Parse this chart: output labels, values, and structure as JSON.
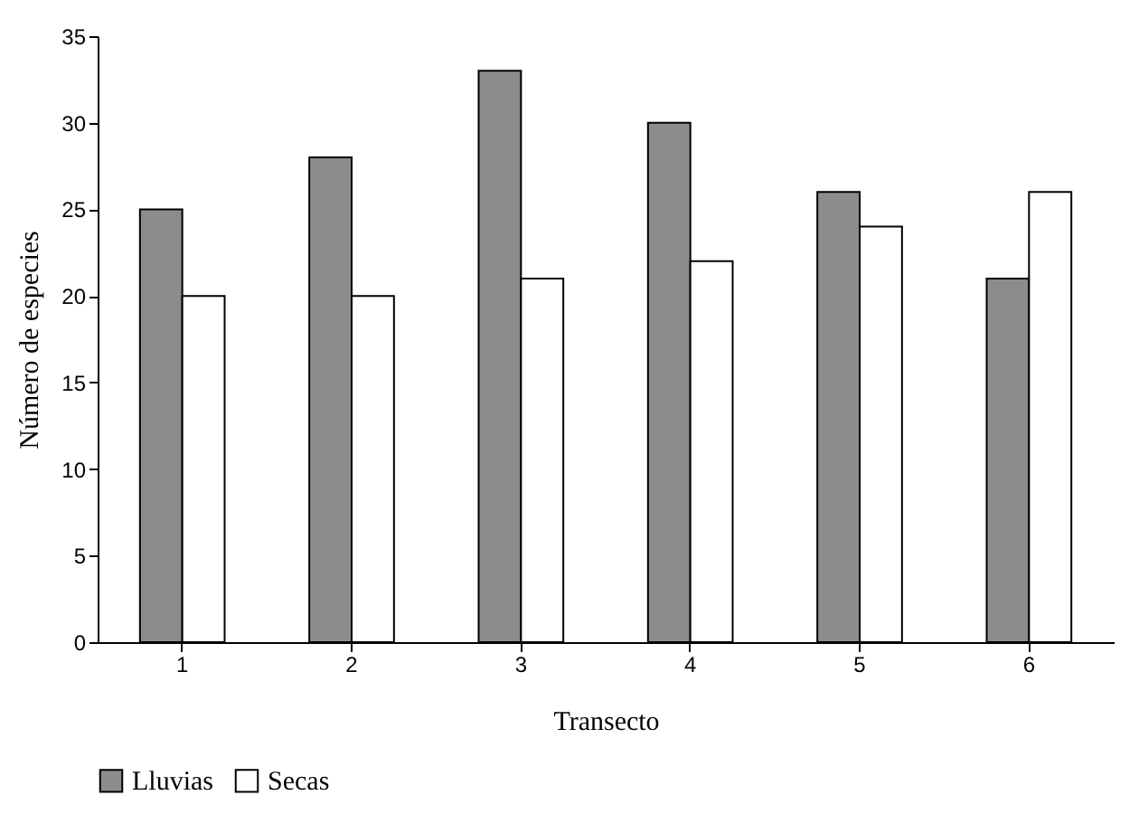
{
  "chart_data": {
    "type": "bar",
    "xlabel": "Transecto",
    "ylabel": "Número de especies",
    "categories": [
      "1",
      "2",
      "3",
      "4",
      "5",
      "6"
    ],
    "series": [
      {
        "name": "Lluvias",
        "color": "#8c8c8c",
        "values": [
          25,
          28,
          33,
          30,
          26,
          21
        ]
      },
      {
        "name": "Secas",
        "color": "#ffffff",
        "values": [
          20,
          20,
          21,
          22,
          24,
          26
        ]
      }
    ],
    "ylim": [
      0,
      35
    ],
    "yticks": [
      0,
      5,
      10,
      15,
      20,
      25,
      30,
      35
    ],
    "grid": false,
    "legend": "bottom"
  }
}
